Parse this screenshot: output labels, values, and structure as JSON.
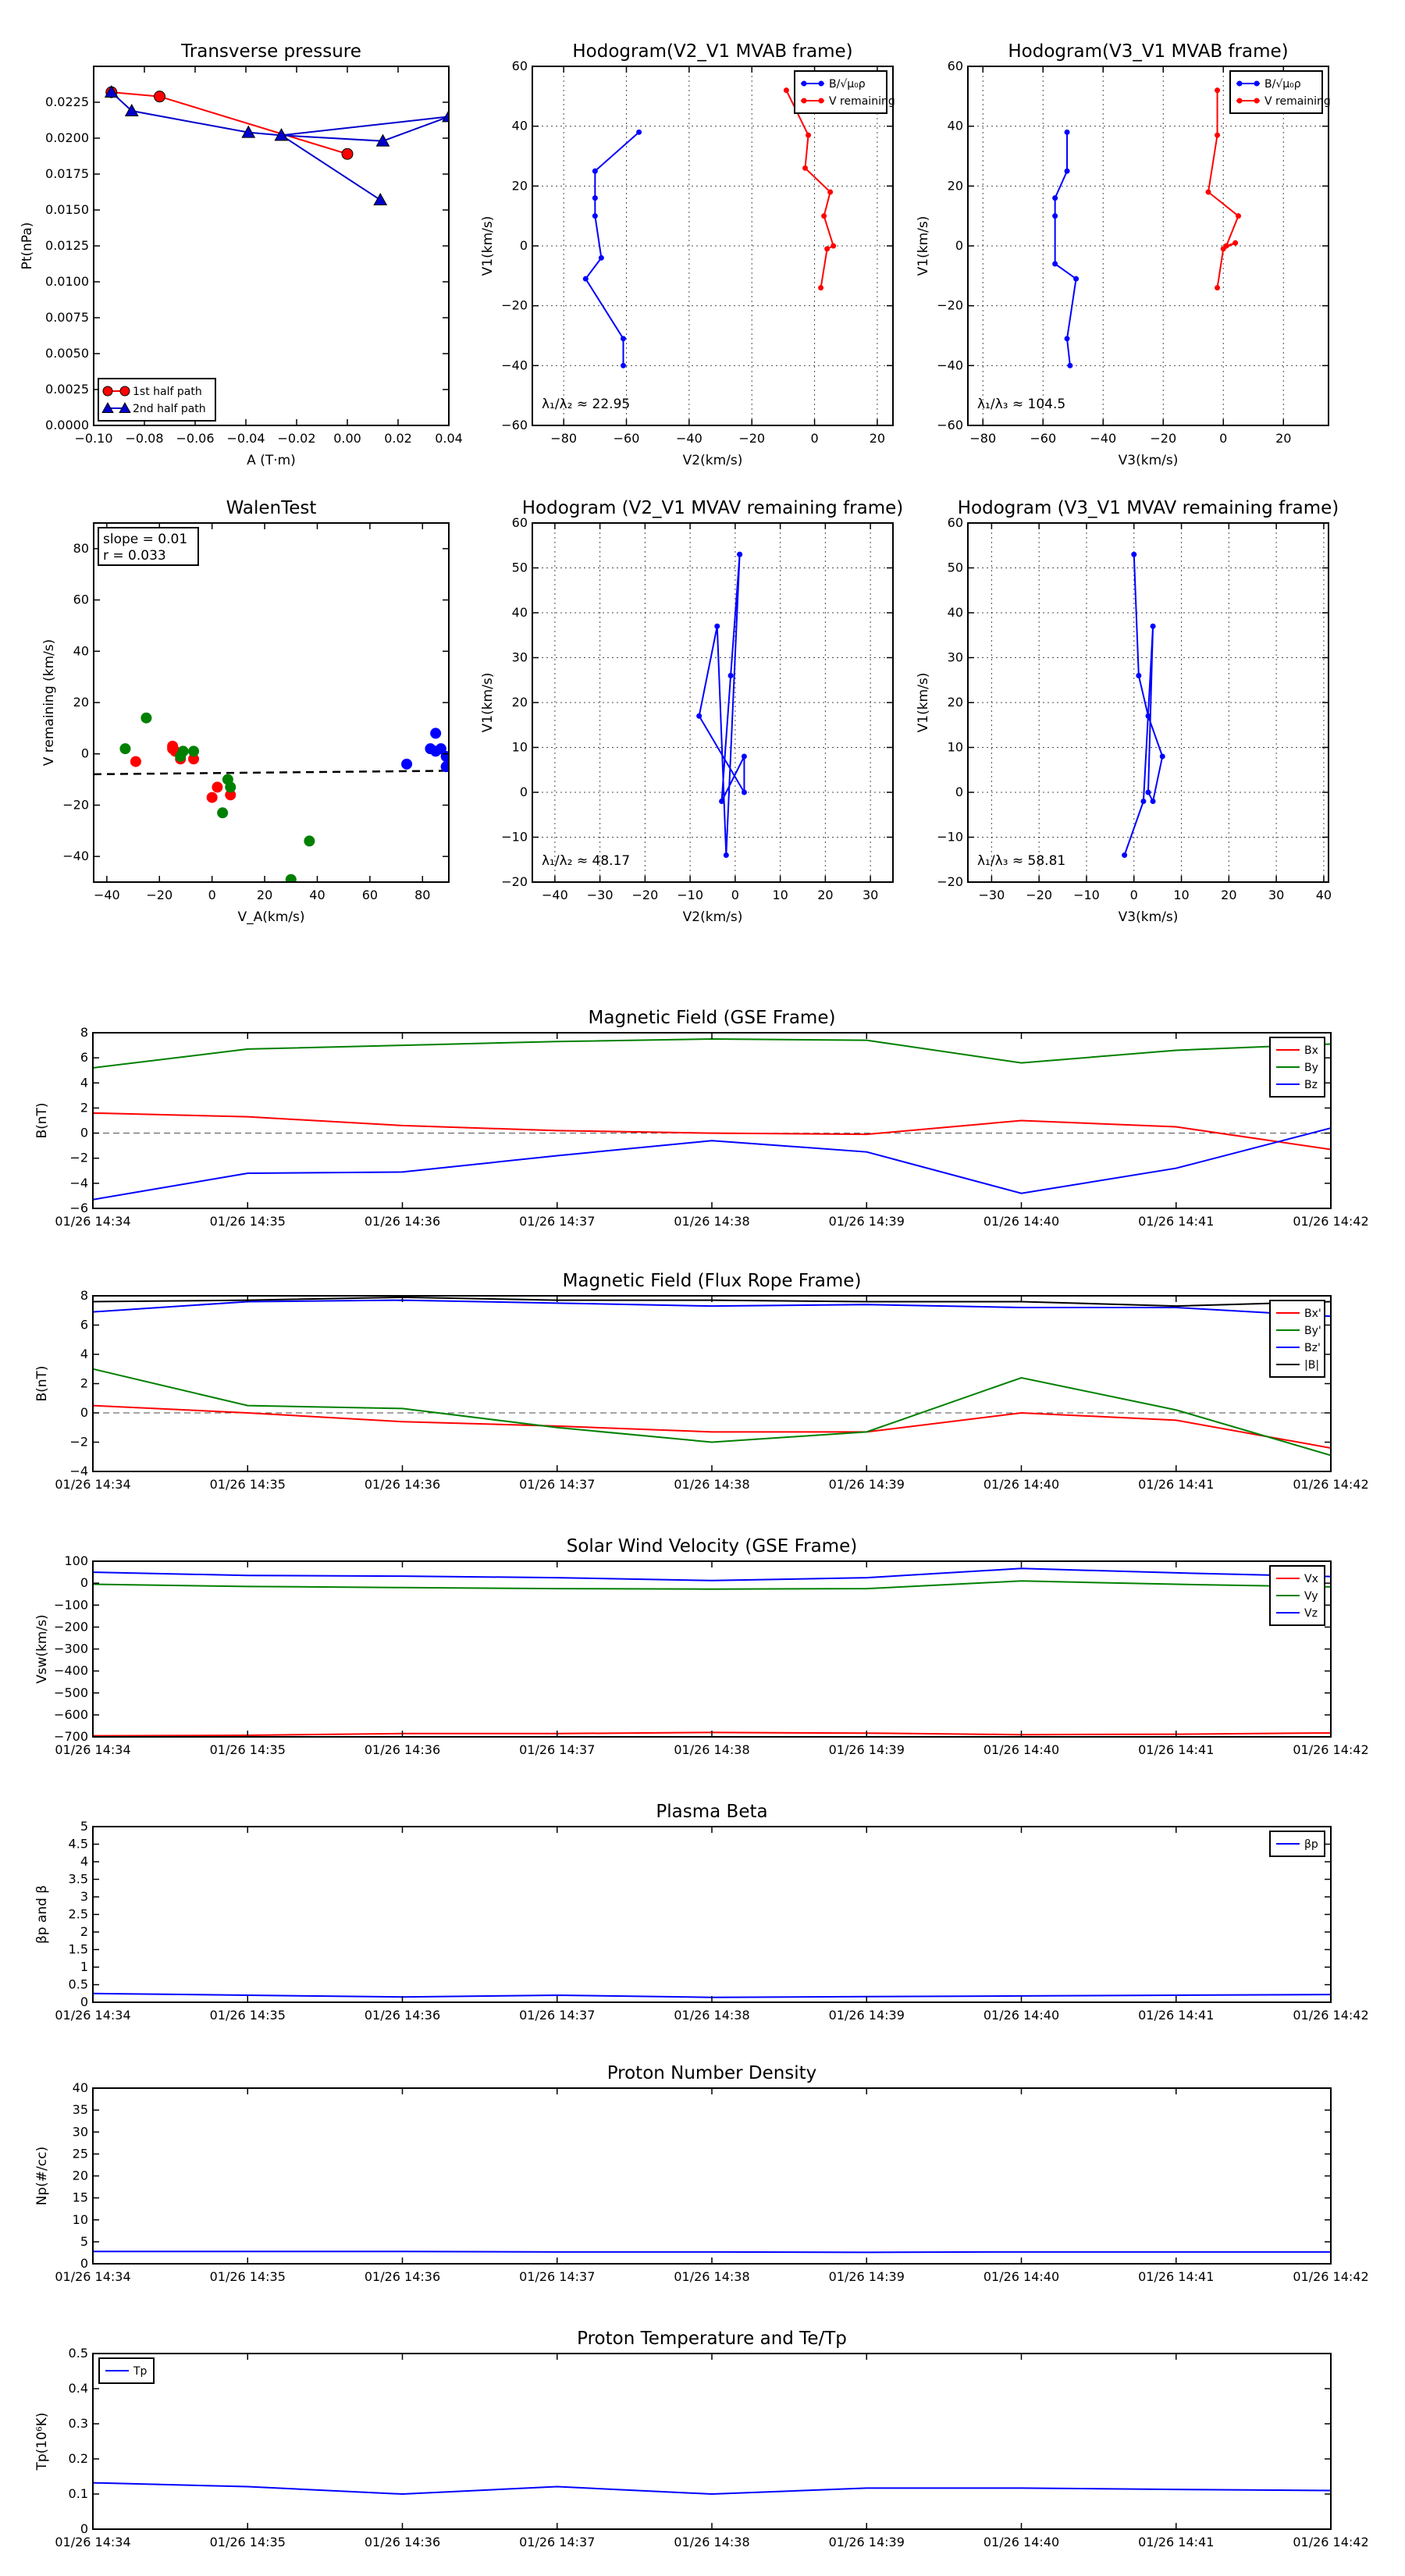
{
  "chart_data": [
    {
      "id": "transverse_pressure",
      "type": "line",
      "title": "Transverse pressure",
      "xlabel": "A (T·m)",
      "ylabel": "Pt(nPa)",
      "xlim": [
        -0.1,
        0.04
      ],
      "ylim": [
        0,
        0.025
      ],
      "xticks": [
        -0.1,
        -0.08,
        -0.06,
        -0.04,
        -0.02,
        0.0,
        0.02,
        0.04
      ],
      "xtick_labels": [
        "−0.10",
        "−0.08",
        "−0.06",
        "−0.04",
        "−0.02",
        "0.00",
        "0.02",
        "0.04"
      ],
      "yticks": [
        0,
        0.0025,
        0.005,
        0.0075,
        0.01,
        0.0125,
        0.015,
        0.0175,
        0.02,
        0.0225
      ],
      "ytick_labels": [
        "0.0000",
        "0.0025",
        "0.0050",
        "0.0075",
        "0.0100",
        "0.0125",
        "0.0150",
        "0.0175",
        "0.0200",
        "0.0225"
      ],
      "grid": false,
      "legend": "bottom-left",
      "series": [
        {
          "name": "1st half path",
          "color": "#ff0000",
          "marker": "circle",
          "x": [
            -0.093,
            -0.074,
            0.0
          ],
          "y": [
            0.0232,
            0.0229,
            0.0189
          ]
        },
        {
          "name": "2nd half path",
          "color": "#0000cc",
          "marker": "triangle",
          "x": [
            -0.093,
            -0.085,
            -0.039,
            -0.026,
            0.014,
            0.04,
            -0.026,
            0.013
          ],
          "y": [
            0.0232,
            0.0219,
            0.0204,
            0.0202,
            0.0198,
            0.0215,
            0.0202,
            0.0157
          ]
        }
      ]
    },
    {
      "id": "hodo_v2v1_mvab",
      "type": "line",
      "title": "Hodogram(V2_V1 MVAB frame)",
      "xlabel": "V2(km/s)",
      "ylabel": "V1(km/s)",
      "xlim": [
        -90,
        25
      ],
      "ylim": [
        -60,
        60
      ],
      "xticks": [
        -80,
        -60,
        -40,
        -20,
        0,
        20
      ],
      "yticks": [
        -60,
        -40,
        -20,
        0,
        20,
        40,
        60
      ],
      "grid": true,
      "legend": "top-right",
      "annotation": "λ₁/λ₂ ≈ 22.95",
      "series": [
        {
          "name": "B/√μ₀ρ",
          "color": "#0000ff",
          "x": [
            -56,
            -70,
            -70,
            -70,
            -68,
            -73,
            -61,
            -61
          ],
          "y": [
            38,
            25,
            16,
            10,
            -4,
            -11,
            -31,
            -40
          ]
        },
        {
          "name": "V remaining",
          "color": "#ff0000",
          "x": [
            -9,
            -2,
            -3,
            5,
            3,
            6,
            4,
            2
          ],
          "y": [
            52,
            37,
            26,
            18,
            10,
            0,
            -1,
            -14
          ]
        }
      ]
    },
    {
      "id": "hodo_v3v1_mvab",
      "type": "line",
      "title": "Hodogram(V3_V1 MVAB frame)",
      "xlabel": "V3(km/s)",
      "ylabel": "V1(km/s)",
      "xlim": [
        -85,
        35
      ],
      "ylim": [
        -60,
        60
      ],
      "xticks": [
        -80,
        -60,
        -40,
        -20,
        0,
        20
      ],
      "yticks": [
        -60,
        -40,
        -20,
        0,
        20,
        40,
        60
      ],
      "grid": true,
      "legend": "top-right",
      "annotation": "λ₁/λ₃ ≈ 104.5",
      "series": [
        {
          "name": "B/√μ₀ρ",
          "color": "#0000ff",
          "x": [
            -52,
            -52,
            -56,
            -56,
            -56,
            -49,
            -52,
            -51
          ],
          "y": [
            38,
            25,
            16,
            10,
            -6,
            -11,
            -31,
            -40
          ]
        },
        {
          "name": "V remaining",
          "color": "#ff0000",
          "x": [
            -2,
            -2,
            -5,
            5,
            1,
            4,
            0,
            -2
          ],
          "y": [
            52,
            37,
            18,
            10,
            0,
            1,
            -1,
            -14
          ]
        }
      ]
    },
    {
      "id": "walen_test",
      "type": "scatter",
      "title": "WalenTest",
      "xlabel": "V_A(km/s)",
      "ylabel": "V remaining (km/s)",
      "xlim": [
        -45,
        90
      ],
      "ylim": [
        -50,
        90
      ],
      "xticks": [
        -40,
        -20,
        0,
        20,
        40,
        60,
        80
      ],
      "yticks": [
        -40,
        -20,
        0,
        20,
        40,
        60,
        80
      ],
      "grid": false,
      "stats_text": [
        "slope = 0.01",
        "r = 0.033"
      ],
      "fit_line": {
        "slope": 0.01,
        "intercept": -7.5
      },
      "series": [
        {
          "name": "red",
          "color": "#ff0000",
          "x": [
            -29,
            -15,
            -15,
            -14,
            -12,
            -7,
            0,
            2,
            7
          ],
          "y": [
            -3,
            3,
            2,
            1,
            -2,
            -2,
            -17,
            -13,
            -16
          ]
        },
        {
          "name": "green",
          "color": "#008000",
          "x": [
            -33,
            -25,
            -11,
            -12,
            -7,
            6,
            4,
            7,
            37,
            30
          ],
          "y": [
            2,
            14,
            1,
            -1,
            1,
            -10,
            -23,
            -13,
            -34,
            -49
          ]
        },
        {
          "name": "blue",
          "color": "#0000ff",
          "x": [
            74,
            83,
            85,
            85,
            87,
            89,
            89,
            90
          ],
          "y": [
            -4,
            2,
            8,
            1,
            2,
            -1,
            -5,
            -5
          ]
        }
      ]
    },
    {
      "id": "hodo_v2v1_mvav",
      "type": "line",
      "title": "Hodogram (V2_V1 MVAV remaining frame)",
      "xlabel": "V2(km/s)",
      "ylabel": "V1(km/s)",
      "xlim": [
        -45,
        35
      ],
      "ylim": [
        -20,
        60
      ],
      "xticks": [
        -40,
        -30,
        -20,
        -10,
        0,
        10,
        20,
        30
      ],
      "yticks": [
        -20,
        -10,
        0,
        10,
        20,
        30,
        40,
        50,
        60
      ],
      "grid": true,
      "annotation": "λ₁/λ₂ ≈ 48.17",
      "series": [
        {
          "name": "V",
          "color": "#0000ff",
          "x": [
            1,
            -1,
            -3,
            2,
            2,
            -8,
            -4,
            -2,
            1
          ],
          "y": [
            53,
            26,
            -2,
            8,
            0,
            17,
            37,
            -14,
            53
          ]
        }
      ]
    },
    {
      "id": "hodo_v3v1_mvav",
      "type": "line",
      "title": "Hodogram (V3_V1 MVAV remaining frame)",
      "xlabel": "V3(km/s)",
      "ylabel": "V1(km/s)",
      "xlim": [
        -35,
        41
      ],
      "ylim": [
        -20,
        60
      ],
      "xticks": [
        -30,
        -20,
        -10,
        0,
        10,
        20,
        30,
        40
      ],
      "yticks": [
        -20,
        -10,
        0,
        10,
        20,
        30,
        40,
        50,
        60
      ],
      "grid": true,
      "annotation": "λ₁/λ₃ ≈ 58.81",
      "series": [
        {
          "name": "V",
          "color": "#0000ff",
          "x": [
            0,
            1,
            3,
            6,
            4,
            3,
            4,
            2,
            -2
          ],
          "y": [
            53,
            26,
            17,
            8,
            -2,
            0,
            37,
            -2,
            -14
          ]
        }
      ]
    },
    {
      "id": "mag_gse",
      "type": "line",
      "title": "Magnetic Field (GSE Frame)",
      "ylabel": "B(nT)",
      "ylim": [
        -6,
        8
      ],
      "yticks": [
        -6,
        -4,
        -2,
        0,
        2,
        4,
        6,
        8
      ],
      "categories": [
        "01/26 14:34",
        "01/26 14:35",
        "01/26 14:36",
        "01/26 14:37",
        "01/26 14:38",
        "01/26 14:39",
        "01/26 14:40",
        "01/26 14:41",
        "01/26 14:42"
      ],
      "zero_line": true,
      "legend": "top-right",
      "series": [
        {
          "name": "Bx",
          "color": "#ff0000",
          "values": [
            1.6,
            1.3,
            0.6,
            0.2,
            0.0,
            -0.1,
            1.0,
            0.5,
            -1.3
          ]
        },
        {
          "name": "By",
          "color": "#008000",
          "values": [
            5.2,
            6.7,
            7.0,
            7.3,
            7.5,
            7.4,
            5.6,
            6.6,
            7.1
          ]
        },
        {
          "name": "Bz",
          "color": "#0000ff",
          "values": [
            -5.3,
            -3.2,
            -3.1,
            -1.8,
            -0.6,
            -1.5,
            -4.8,
            -2.8,
            0.4
          ]
        }
      ]
    },
    {
      "id": "mag_fr",
      "type": "line",
      "title": "Magnetic Field (Flux Rope Frame)",
      "ylabel": "B(nT)",
      "ylim": [
        -4,
        8
      ],
      "yticks": [
        -4,
        -2,
        0,
        2,
        4,
        6,
        8
      ],
      "categories": [
        "01/26 14:34",
        "01/26 14:35",
        "01/26 14:36",
        "01/26 14:37",
        "01/26 14:38",
        "01/26 14:39",
        "01/26 14:40",
        "01/26 14:41",
        "01/26 14:42"
      ],
      "zero_line": true,
      "legend": "top-right",
      "series": [
        {
          "name": "Bx'",
          "color": "#ff0000",
          "values": [
            0.5,
            0.0,
            -0.6,
            -0.9,
            -1.3,
            -1.3,
            0.0,
            -0.5,
            -2.4
          ]
        },
        {
          "name": "By'",
          "color": "#008000",
          "values": [
            3.0,
            0.5,
            0.3,
            -1.0,
            -2.0,
            -1.3,
            2.4,
            0.2,
            -2.9
          ]
        },
        {
          "name": "Bz'",
          "color": "#0000ff",
          "values": [
            6.9,
            7.6,
            7.7,
            7.5,
            7.3,
            7.4,
            7.2,
            7.2,
            6.6
          ]
        },
        {
          "name": "|B|",
          "color": "#000000",
          "values": [
            7.6,
            7.7,
            7.9,
            7.7,
            7.7,
            7.6,
            7.6,
            7.3,
            7.6
          ]
        }
      ]
    },
    {
      "id": "sw_velocity",
      "type": "line",
      "title": "Solar Wind Velocity (GSE Frame)",
      "ylabel": "Vsw(km/s)",
      "ylim": [
        -700,
        100
      ],
      "yticks": [
        -700,
        -600,
        -500,
        -400,
        -300,
        -200,
        -100,
        0,
        100
      ],
      "categories": [
        "01/26 14:34",
        "01/26 14:35",
        "01/26 14:36",
        "01/26 14:37",
        "01/26 14:38",
        "01/26 14:39",
        "01/26 14:40",
        "01/26 14:41",
        "01/26 14:42"
      ],
      "legend": "top-right",
      "series": [
        {
          "name": "Vx",
          "color": "#ff0000",
          "values": [
            -695,
            -693,
            -685,
            -685,
            -680,
            -683,
            -690,
            -688,
            -682
          ]
        },
        {
          "name": "Vy",
          "color": "#008000",
          "values": [
            -5,
            -15,
            -20,
            -25,
            -27,
            -25,
            10,
            -5,
            -17
          ]
        },
        {
          "name": "Vz",
          "color": "#0000ff",
          "values": [
            50,
            35,
            32,
            25,
            12,
            25,
            67,
            47,
            30
          ]
        }
      ]
    },
    {
      "id": "plasma_beta",
      "type": "line",
      "title": "Plasma Beta",
      "ylabel": "βp and β",
      "ylim": [
        0,
        5
      ],
      "yticks": [
        0,
        0.5,
        1,
        1.5,
        2,
        2.5,
        3,
        3.5,
        4,
        4.5,
        5
      ],
      "categories": [
        "01/26 14:34",
        "01/26 14:35",
        "01/26 14:36",
        "01/26 14:37",
        "01/26 14:38",
        "01/26 14:39",
        "01/26 14:40",
        "01/26 14:41",
        "01/26 14:42"
      ],
      "legend": "top-right",
      "series": [
        {
          "name": "βp",
          "color": "#0000ff",
          "values": [
            0.25,
            0.2,
            0.15,
            0.2,
            0.14,
            0.16,
            0.18,
            0.2,
            0.22
          ]
        }
      ]
    },
    {
      "id": "proton_density",
      "type": "line",
      "title": "Proton Number Density",
      "ylabel": "Np(#/cc)",
      "ylim": [
        0,
        40
      ],
      "yticks": [
        0,
        5,
        10,
        15,
        20,
        25,
        30,
        35,
        40
      ],
      "categories": [
        "01/26 14:34",
        "01/26 14:35",
        "01/26 14:36",
        "01/26 14:37",
        "01/26 14:38",
        "01/26 14:39",
        "01/26 14:40",
        "01/26 14:41",
        "01/26 14:42"
      ],
      "series": [
        {
          "color": "#0000ff",
          "values": [
            2.8,
            2.8,
            2.8,
            2.7,
            2.7,
            2.6,
            2.7,
            2.7,
            2.7
          ]
        }
      ]
    },
    {
      "id": "proton_temp",
      "type": "line",
      "title": "Proton Temperature and Te/Tp",
      "ylabel": "Tp(10⁶K)",
      "ylim": [
        0,
        0.5
      ],
      "yticks": [
        0,
        0.1,
        0.2,
        0.3,
        0.4,
        0.5
      ],
      "categories": [
        "01/26 14:34",
        "01/26 14:35",
        "01/26 14:36",
        "01/26 14:37",
        "01/26 14:38",
        "01/26 14:39",
        "01/26 14:40",
        "01/26 14:41",
        "01/26 14:42"
      ],
      "legend": "top-left",
      "series": [
        {
          "name": "Tp",
          "color": "#0000ff",
          "values": [
            0.132,
            0.121,
            0.1,
            0.121,
            0.1,
            0.117,
            0.117,
            0.113,
            0.11
          ]
        }
      ]
    }
  ]
}
